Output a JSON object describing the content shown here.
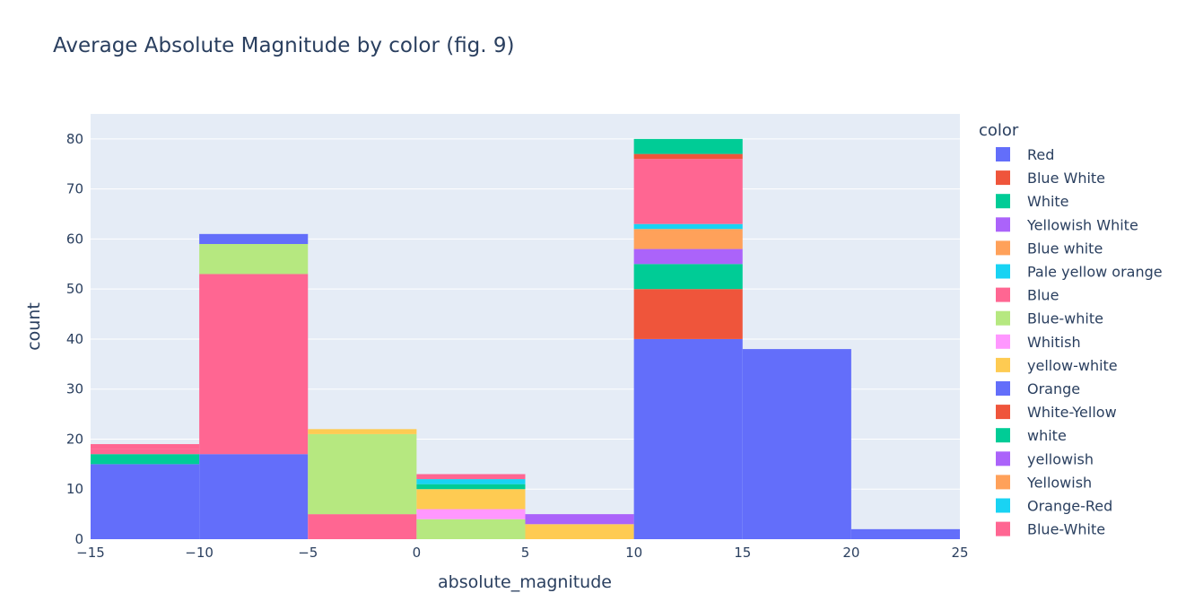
{
  "chart_data": {
    "type": "bar",
    "barmode": "stack",
    "title": "Average Absolute Magnitude by color (fig. 9)",
    "xlabel": "absolute_magnitude",
    "ylabel": "count",
    "xlim": [
      -15,
      25
    ],
    "ylim": [
      0,
      85
    ],
    "bins": [
      [
        -15,
        -10
      ],
      [
        -10,
        -5
      ],
      [
        -5,
        0
      ],
      [
        0,
        5
      ],
      [
        5,
        10
      ],
      [
        10,
        15
      ],
      [
        15,
        20
      ],
      [
        20,
        25
      ]
    ],
    "xticks": [
      -15,
      -10,
      -5,
      0,
      5,
      10,
      15,
      20,
      25
    ],
    "xtick_labels": [
      "−15",
      "−10",
      "−5",
      "0",
      "5",
      "10",
      "15",
      "20",
      "25"
    ],
    "yticks": [
      0,
      10,
      20,
      30,
      40,
      50,
      60,
      70,
      80
    ],
    "grid": true,
    "legend_title": "color",
    "legend_position": "right",
    "series": [
      {
        "name": "Red",
        "color": "#636efa",
        "values": [
          15,
          17,
          0,
          0,
          0,
          40,
          38,
          2
        ]
      },
      {
        "name": "Blue White",
        "color": "#ef553b",
        "values": [
          0,
          0,
          0,
          0,
          0,
          10,
          0,
          0
        ]
      },
      {
        "name": "White",
        "color": "#00cc96",
        "values": [
          2,
          0,
          0,
          0,
          0,
          5,
          0,
          0
        ]
      },
      {
        "name": "Yellowish White",
        "color": "#ab63fa",
        "values": [
          0,
          0,
          0,
          0,
          0,
          3,
          0,
          0
        ]
      },
      {
        "name": "Blue white",
        "color": "#ffa15a",
        "values": [
          0,
          0,
          0,
          0,
          0,
          4,
          0,
          0
        ]
      },
      {
        "name": "Pale yellow orange",
        "color": "#19d3f3",
        "values": [
          0,
          0,
          0,
          0,
          0,
          1,
          0,
          0
        ]
      },
      {
        "name": "Blue",
        "color": "#ff6692",
        "values": [
          1,
          36,
          5,
          0,
          0,
          13,
          0,
          0
        ]
      },
      {
        "name": "Blue-white",
        "color": "#b6e880",
        "values": [
          0,
          6,
          16,
          4,
          0,
          0,
          0,
          0
        ]
      },
      {
        "name": "Whitish",
        "color": "#ff97ff",
        "values": [
          0,
          0,
          0,
          2,
          0,
          0,
          0,
          0
        ]
      },
      {
        "name": "yellow-white",
        "color": "#fecb52",
        "values": [
          0,
          0,
          1,
          4,
          3,
          0,
          0,
          0
        ]
      },
      {
        "name": "Orange",
        "color": "#636efa",
        "values": [
          0,
          2,
          0,
          0,
          0,
          0,
          0,
          0
        ]
      },
      {
        "name": "White-Yellow",
        "color": "#ef553b",
        "values": [
          0,
          0,
          0,
          0,
          0,
          1,
          0,
          0
        ]
      },
      {
        "name": "white",
        "color": "#00cc96",
        "values": [
          0,
          0,
          0,
          1,
          0,
          3,
          0,
          0
        ]
      },
      {
        "name": "yellowish",
        "color": "#ab63fa",
        "values": [
          0,
          0,
          0,
          0,
          2,
          0,
          0,
          0
        ]
      },
      {
        "name": "Yellowish",
        "color": "#ffa15a",
        "values": [
          0,
          0,
          0,
          0,
          0,
          0,
          0,
          0
        ]
      },
      {
        "name": "Orange-Red",
        "color": "#19d3f3",
        "values": [
          0,
          0,
          0,
          1,
          0,
          0,
          0,
          0
        ]
      },
      {
        "name": "Blue-White",
        "color": "#ff6692",
        "values": [
          1,
          0,
          0,
          1,
          0,
          0,
          0,
          0
        ]
      }
    ]
  }
}
